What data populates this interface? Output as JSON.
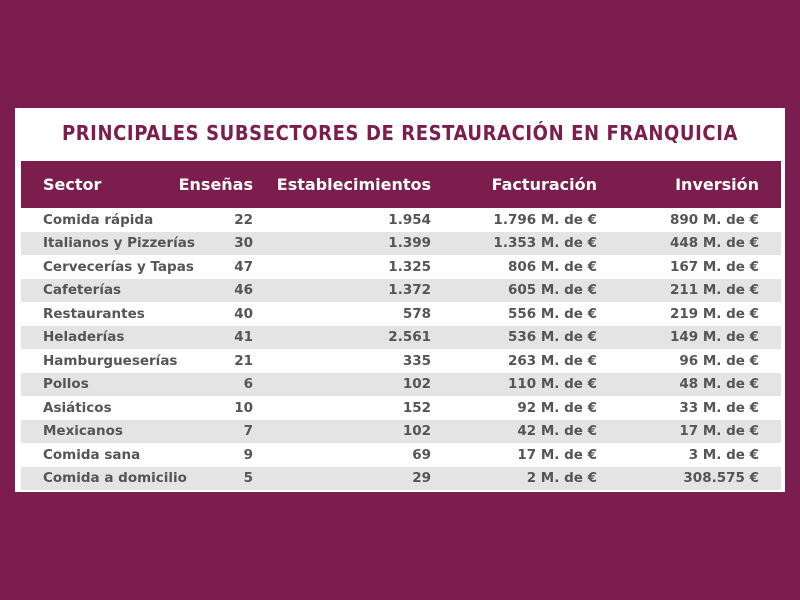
{
  "title": "PRINCIPALES SUBSECTORES DE RESTAURACIÓN EN FRANQUICIA",
  "columns": [
    "Sector",
    "Enseñas",
    "Establecimientos",
    "Facturación",
    "Inversión"
  ],
  "rows": [
    [
      "Comida rápida",
      "22",
      "1.954",
      "1.796 M. de €",
      "890 M. de €"
    ],
    [
      "Italianos y Pizzerías",
      "30",
      "1.399",
      "1.353 M. de €",
      "448 M. de €"
    ],
    [
      "Cervecerías y Tapas",
      "47",
      "1.325",
      "806 M. de €",
      "167 M. de €"
    ],
    [
      "Cafeterías",
      "46",
      "1.372",
      "605 M. de €",
      "211 M. de €"
    ],
    [
      "Restaurantes",
      "40",
      "578",
      "556 M. de €",
      "219 M. de €"
    ],
    [
      "Heladerías",
      "41",
      "2.561",
      "536 M. de €",
      "149 M. de €"
    ],
    [
      "Hamburgueserías",
      "21",
      "335",
      "263 M. de €",
      "96 M. de €"
    ],
    [
      "Pollos",
      "6",
      "102",
      "110 M. de €",
      "48 M. de €"
    ],
    [
      "Asiáticos",
      "10",
      "152",
      "92 M. de €",
      "33 M. de €"
    ],
    [
      "Mexicanos",
      "7",
      "102",
      "42 M. de €",
      "17 M. de €"
    ],
    [
      "Comida sana",
      "9",
      "69",
      "17 M. de €",
      "3 M. de €"
    ],
    [
      "Comida a domicilio",
      "5",
      "29",
      "2 M. de €",
      "308.575 €"
    ]
  ],
  "colors": {
    "brand": "#7b1d4d",
    "row_alt": "#e4e4e4",
    "text": "#555555"
  }
}
